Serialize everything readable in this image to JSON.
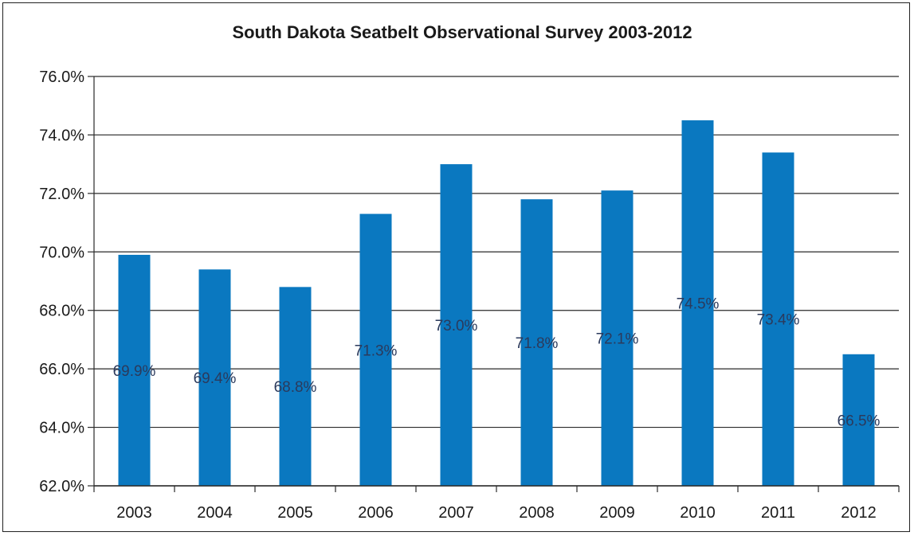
{
  "chart_data": {
    "type": "bar",
    "title": "South Dakota Seatbelt Observational Survey 2003-2012",
    "xlabel": "",
    "ylabel": "",
    "categories": [
      "2003",
      "2004",
      "2005",
      "2006",
      "2007",
      "2008",
      "2009",
      "2010",
      "2011",
      "2012"
    ],
    "values": [
      69.9,
      69.4,
      68.8,
      71.3,
      73.0,
      71.8,
      72.1,
      74.5,
      73.4,
      66.5
    ],
    "data_labels": [
      "69.9%",
      "69.4%",
      "68.8%",
      "71.3%",
      "73.0%",
      "71.8%",
      "72.1%",
      "74.5%",
      "73.4%",
      "66.5%"
    ],
    "ylim": [
      62,
      76
    ],
    "y_ticks": [
      62,
      64,
      66,
      68,
      70,
      72,
      74,
      76
    ],
    "y_tick_labels": [
      "62.0%",
      "64.0%",
      "66.0%",
      "68.0%",
      "70.0%",
      "72.0%",
      "74.0%",
      "76.0%"
    ],
    "grid": true,
    "legend": "none",
    "bar_color": "#0a78c0"
  }
}
